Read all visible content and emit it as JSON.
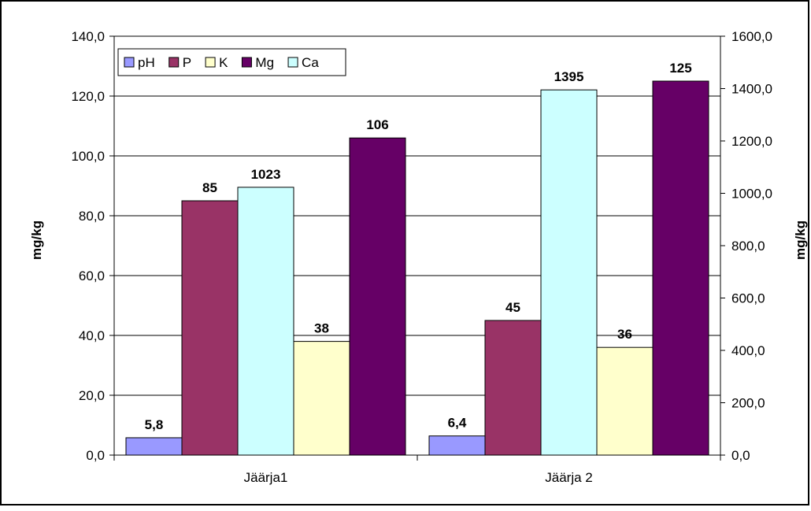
{
  "chart_data": {
    "type": "bar",
    "categories": [
      "Jäärja1",
      "Jäärja 2"
    ],
    "series": [
      {
        "name": "pH",
        "axis": "left",
        "color": "#9999FF",
        "values": [
          5.8,
          6.4
        ],
        "labels": [
          "5,8",
          "6,4"
        ]
      },
      {
        "name": "P",
        "axis": "left",
        "color": "#993366",
        "values": [
          85,
          45
        ],
        "labels": [
          "85",
          "45"
        ]
      },
      {
        "name": "K",
        "axis": "left",
        "color": "#FFFFCC",
        "values": [
          38,
          36
        ],
        "labels": [
          "38",
          "36"
        ]
      },
      {
        "name": "Mg",
        "axis": "left",
        "color": "#660066",
        "values": [
          106,
          125
        ],
        "labels": [
          "106",
          "125"
        ]
      },
      {
        "name": "Ca",
        "axis": "right",
        "color": "#CCFFFF",
        "values": [
          1023,
          1395
        ],
        "labels": [
          "1023",
          "1395"
        ]
      }
    ],
    "bar_order": [
      "pH",
      "P",
      "Ca",
      "K",
      "Mg"
    ],
    "legend_order": [
      "pH",
      "P",
      "K",
      "Mg",
      "Ca"
    ],
    "ylabel": "mg/kg",
    "ylabel_right": "mg/kg",
    "ylim": [
      0,
      140
    ],
    "ylim_right": [
      0,
      1600
    ],
    "yticks": [
      "0,0",
      "20,0",
      "40,0",
      "60,0",
      "80,0",
      "100,0",
      "120,0",
      "140,0"
    ],
    "yticks_right": [
      "0,0",
      "200,0",
      "400,0",
      "600,0",
      "800,0",
      "1000,0",
      "1200,0",
      "1400,0",
      "1600,0"
    ],
    "grid": true,
    "legend_position": "top-left"
  }
}
